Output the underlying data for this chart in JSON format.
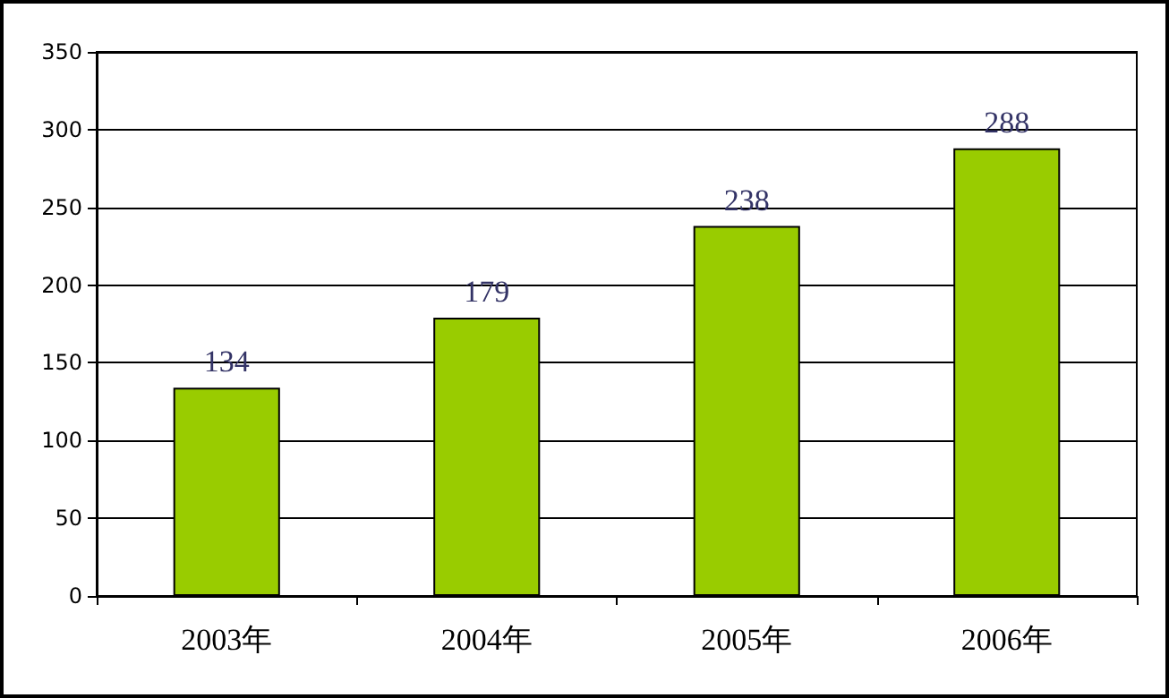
{
  "chart_data": {
    "type": "bar",
    "categories": [
      "2003年",
      "2004年",
      "2005年",
      "2006年"
    ],
    "values": [
      134,
      179,
      238,
      288
    ],
    "color": "#99cc00",
    "ylim": [
      0,
      350
    ],
    "yticks": [
      0,
      50,
      100,
      150,
      200,
      250,
      300,
      350
    ],
    "grid": "y",
    "data_labels": true
  }
}
